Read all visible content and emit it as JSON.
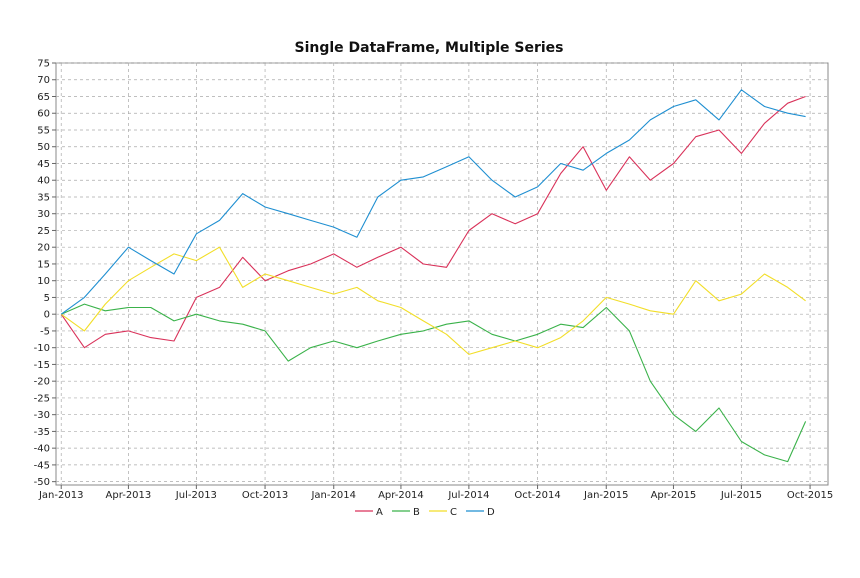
{
  "chart_data": {
    "type": "line",
    "title": "Single DataFrame, Multiple Series",
    "xlabel": "",
    "ylabel": "",
    "x_ticks": [
      "Jan-2013",
      "Apr-2013",
      "Jul-2013",
      "Oct-2013",
      "Jan-2014",
      "Apr-2014",
      "Jul-2014",
      "Oct-2014",
      "Jan-2015",
      "Apr-2015",
      "Jul-2015",
      "Oct-2015"
    ],
    "x_range": [
      "2012-12-25",
      "2015-10-25"
    ],
    "ylim": [
      -51,
      75
    ],
    "y_ticks": [
      75,
      70,
      65,
      60,
      55,
      50,
      45,
      40,
      35,
      30,
      25,
      20,
      15,
      10,
      5,
      0,
      -5,
      -10,
      -15,
      -20,
      -25,
      -30,
      -35,
      -40,
      -45,
      -50
    ],
    "grid": true,
    "legend_position": "bottom",
    "x": [
      "2013-01-01",
      "2013-02-01",
      "2013-03-01",
      "2013-04-01",
      "2013-05-01",
      "2013-06-01",
      "2013-07-01",
      "2013-08-01",
      "2013-09-01",
      "2013-10-01",
      "2013-11-01",
      "2013-12-01",
      "2014-01-01",
      "2014-02-01",
      "2014-03-01",
      "2014-04-01",
      "2014-05-01",
      "2014-06-01",
      "2014-07-01",
      "2014-08-01",
      "2014-09-01",
      "2014-10-01",
      "2014-11-01",
      "2014-12-01",
      "2015-01-01",
      "2015-02-01",
      "2015-03-01",
      "2015-04-01",
      "2015-05-01",
      "2015-06-01",
      "2015-07-01",
      "2015-08-01",
      "2015-09-01",
      "2015-09-25"
    ],
    "series": [
      {
        "name": "A",
        "color": "#d9325a",
        "values": [
          0,
          -10,
          -6,
          -5,
          -7,
          -8,
          5,
          8,
          17,
          10,
          13,
          15,
          18,
          14,
          17,
          20,
          15,
          14,
          25,
          30,
          27,
          30,
          42,
          50,
          37,
          47,
          40,
          45,
          53,
          55,
          48,
          57,
          63,
          65
        ]
      },
      {
        "name": "B",
        "color": "#3ab24a",
        "values": [
          0,
          3,
          1,
          2,
          2,
          -2,
          0,
          -2,
          -3,
          -5,
          -14,
          -10,
          -8,
          -10,
          -8,
          -6,
          -5,
          -3,
          -2,
          -6,
          -8,
          -6,
          -3,
          -4,
          2,
          -5,
          -20,
          -30,
          -35,
          -28,
          -38,
          -42,
          -44,
          -32
        ]
      },
      {
        "name": "C",
        "color": "#f2de28",
        "values": [
          0,
          -5,
          3,
          10,
          14,
          18,
          16,
          20,
          8,
          12,
          10,
          8,
          6,
          8,
          4,
          2,
          -2,
          -6,
          -12,
          -10,
          -8,
          -10,
          -7,
          -2,
          5,
          3,
          1,
          0,
          10,
          4,
          6,
          12,
          8,
          4
        ]
      },
      {
        "name": "D",
        "color": "#1f8fd1",
        "values": [
          0,
          5,
          12,
          20,
          16,
          12,
          24,
          28,
          36,
          32,
          30,
          28,
          26,
          23,
          35,
          40,
          41,
          44,
          47,
          40,
          35,
          38,
          45,
          43,
          48,
          52,
          58,
          62,
          64,
          58,
          67,
          62,
          60,
          59
        ]
      }
    ]
  }
}
